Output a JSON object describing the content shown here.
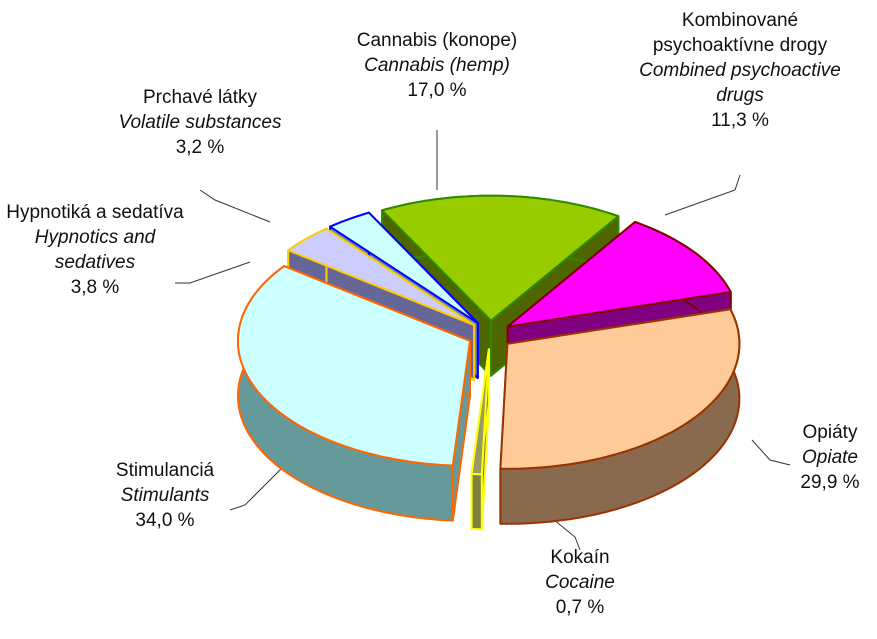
{
  "chart_data": {
    "type": "pie",
    "categories": [
      "Cannabis (konope)",
      "Kombinované psychoaktívne drogy",
      "Opiáty",
      "Kokaín",
      "Stimulanciá",
      "Hypnotiká a sedatíva",
      "Prchavé látky"
    ],
    "categories_en": [
      "Cannabis (hemp)",
      "Combined psychoactive drugs",
      "Opiate",
      "Cocaine",
      "Stimulants",
      "Hypnotics and sedatives",
      "Volatile substances"
    ],
    "values": [
      17.0,
      11.3,
      29.9,
      0.7,
      34.0,
      3.8,
      3.2
    ],
    "value_labels": [
      "17,0 %",
      "11,3 %",
      "29,9 %",
      "0,7 %",
      "34,0 %",
      "3,8 %",
      "3,2 %"
    ],
    "colors": [
      "#99cc00",
      "#ff00ff",
      "#ffcc99",
      "#999966",
      "#ccffff",
      "#ccccff",
      "#ccffff"
    ],
    "side_colors": [
      "#4d6600",
      "#800080",
      "#8a6a4e",
      "#808040",
      "#669999",
      "#666699",
      "#6688bb"
    ],
    "edge_colors": [
      "#2e8b00",
      "#800000",
      "#993300",
      "#ffff00",
      "#ff6600",
      "#ffcc00",
      "#0000ff"
    ]
  }
}
